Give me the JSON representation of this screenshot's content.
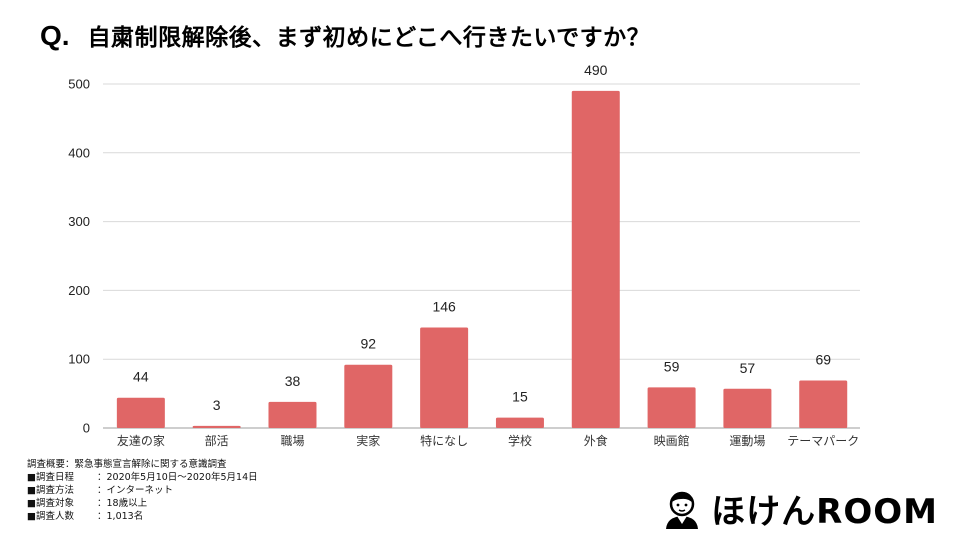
{
  "title": {
    "q_mark": "Q.",
    "question": "自粛制限解除後、まず初めにどこへ行きたいですか？"
  },
  "chart_data": {
    "type": "bar",
    "categories": [
      "友達の家",
      "部活",
      "職場",
      "実家",
      "特になし",
      "学校",
      "外食",
      "映画館",
      "運動場",
      "テーマパーク"
    ],
    "values": [
      44,
      3,
      38,
      92,
      146,
      15,
      490,
      59,
      57,
      69
    ],
    "ylim": [
      0,
      500
    ],
    "yticks": [
      0,
      100,
      200,
      300,
      400,
      500
    ],
    "grid": true,
    "bar_color": "#e06666",
    "data_labels": true
  },
  "survey": {
    "heading": "調査概要：緊急事態宣言解除に関する意識調査",
    "rows": [
      {
        "label": "■調査日程",
        "value": "：2020年5月10日～2020年5月14日"
      },
      {
        "label": "■調査方法",
        "value": "：インターネット"
      },
      {
        "label": "■調査対象",
        "value": "：18歳以上"
      },
      {
        "label": "■調査人数",
        "value": "：1,013名"
      }
    ]
  },
  "brand": {
    "name": "ほけんROOM",
    "icon": "person-avatar-icon"
  }
}
